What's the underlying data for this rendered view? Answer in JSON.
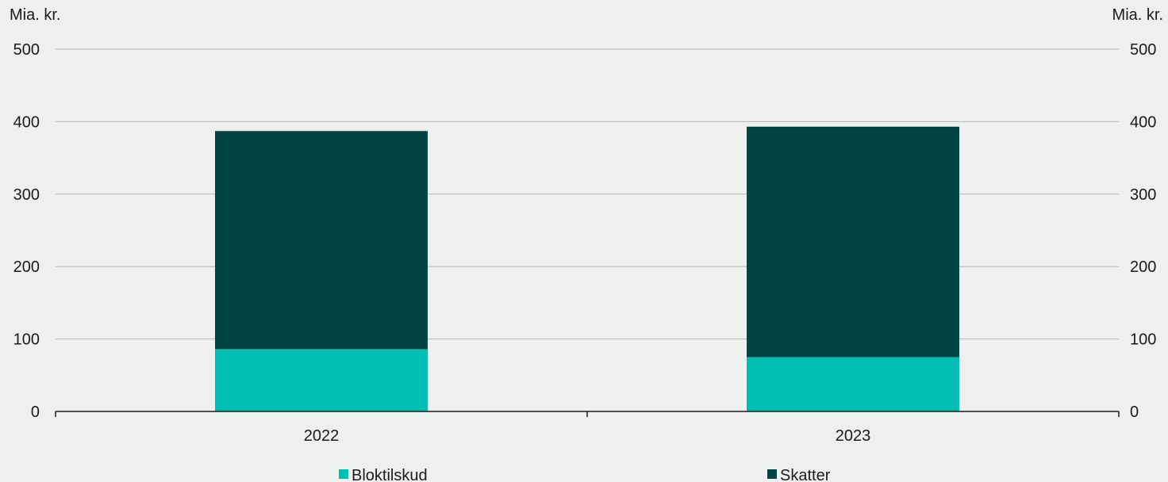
{
  "chart_data": {
    "type": "bar",
    "stacked": true,
    "categories": [
      "2022",
      "2023"
    ],
    "series": [
      {
        "name": "Bloktilskud",
        "values": [
          86,
          75
        ],
        "color": "#00bfb2"
      },
      {
        "name": "Skatter",
        "values": [
          301,
          318
        ],
        "color": "#004542"
      }
    ],
    "ylabel_left": "Mia. kr.",
    "ylabel_right": "Mia. kr.",
    "ylim": [
      0,
      500
    ],
    "yticks": [
      0,
      100,
      200,
      300,
      400,
      500
    ],
    "grid": true,
    "legend_position": "bottom"
  }
}
